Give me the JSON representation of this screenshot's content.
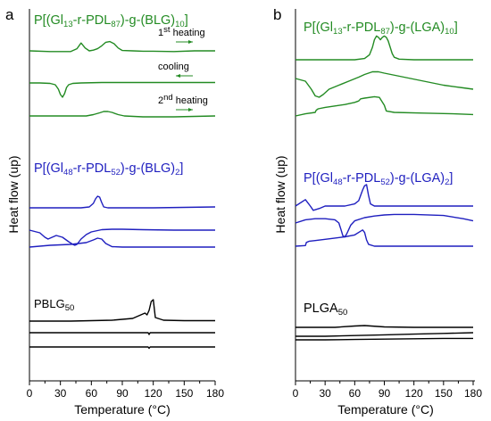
{
  "chart_data": [
    {
      "type": "line",
      "panel": "a",
      "xlabel": "Temperature (°C)",
      "ylabel": "Heat flow (up)",
      "xlim": [
        0,
        180
      ],
      "xticks": [
        "0",
        "30",
        "60",
        "90",
        "120",
        "150",
        "180"
      ],
      "groups": [
        {
          "name": "P[(Gl13-r-PDL87)-g-(BLG)10]",
          "color": "#238B23",
          "annotations": [
            "1st heating",
            "cooling",
            "2nd heating"
          ],
          "series": [
            {
              "name": "1st heating",
              "x": [
                0,
                20,
                40,
                46,
                50,
                54,
                58,
                62,
                66,
                70,
                74,
                78,
                82,
                86,
                90,
                100,
                110,
                120,
                140,
                160,
                180
              ],
              "y": [
                0,
                -0.1,
                -0.1,
                0.3,
                1.1,
                0.4,
                0,
                0.1,
                0.3,
                0.7,
                1.2,
                1.3,
                1.0,
                0.4,
                0.05,
                0,
                -0.05,
                -0.05,
                -0.1,
                0,
                0
              ]
            },
            {
              "name": "cooling",
              "x": [
                0,
                10,
                20,
                25,
                28,
                30,
                32,
                34,
                36,
                38,
                42,
                50,
                70,
                90,
                120,
                150,
                180
              ],
              "y": [
                0,
                0,
                -0.05,
                -0.2,
                -0.7,
                -1.3,
                -1.6,
                -1.2,
                -0.5,
                -0.2,
                -0.05,
                0,
                0.05,
                0.05,
                0.05,
                0.05,
                0.05
              ]
            },
            {
              "name": "2nd heating",
              "x": [
                0,
                20,
                40,
                55,
                62,
                68,
                72,
                76,
                80,
                86,
                92,
                110,
                140,
                180
              ],
              "y": [
                0,
                0,
                0,
                0,
                0.15,
                0.35,
                0.5,
                0.5,
                0.4,
                0.15,
                0,
                -0.1,
                -0.1,
                0
              ]
            }
          ]
        },
        {
          "name": "P[(Gl48-r-PDL52)-g-(BLG)2]",
          "color": "#1F1FBF",
          "series": [
            {
              "name": "1st heating",
              "x": [
                0,
                30,
                50,
                58,
                62,
                64,
                66,
                68,
                70,
                72,
                76,
                90,
                120,
                150,
                180
              ],
              "y": [
                0,
                0,
                0,
                0.1,
                0.5,
                1.0,
                1.3,
                1.2,
                0.6,
                0.1,
                0,
                0,
                0,
                0.05,
                0.1
              ]
            },
            {
              "name": "cooling",
              "x": [
                0,
                10,
                15,
                18,
                22,
                26,
                32,
                38,
                42,
                44,
                46,
                50,
                55,
                60,
                70,
                80,
                90,
                110,
                140,
                180
              ],
              "y": [
                0,
                -0.3,
                -0.8,
                -1.0,
                -0.8,
                -0.6,
                -0.8,
                -1.3,
                -1.6,
                -1.7,
                -1.6,
                -1.0,
                -0.5,
                -0.2,
                0.05,
                0.1,
                0.1,
                0.05,
                0,
                0
              ]
            },
            {
              "name": "2nd heating",
              "x": [
                0,
                20,
                40,
                55,
                62,
                66,
                70,
                74,
                80,
                90,
                110,
                140,
                180
              ],
              "y": [
                0,
                0.2,
                0.3,
                0.5,
                0.8,
                1.0,
                0.9,
                0.4,
                0.05,
                0,
                0,
                0,
                0
              ]
            }
          ]
        },
        {
          "name": "PBLG50",
          "color": "#000000",
          "series": [
            {
              "name": "1st heating",
              "x": [
                0,
                40,
                80,
                100,
                106,
                110,
                112,
                114,
                116,
                118,
                120,
                122,
                130,
                150,
                180
              ],
              "y": [
                0,
                0,
                0.1,
                0.3,
                0.6,
                0.8,
                0.9,
                0.7,
                1.2,
                2.2,
                2.4,
                0.4,
                0.1,
                0.05,
                0.05
              ]
            },
            {
              "name": "cooling",
              "x": [
                0,
                60,
                90,
                115,
                116,
                117,
                120,
                150,
                180
              ],
              "y": [
                0,
                0,
                0,
                0,
                -0.2,
                0,
                0,
                0,
                0
              ]
            },
            {
              "name": "2nd heating",
              "x": [
                0,
                60,
                115,
                116,
                117,
                120,
                150,
                180
              ],
              "y": [
                0,
                0,
                0,
                -0.15,
                0,
                0,
                0,
                0
              ]
            }
          ]
        }
      ]
    },
    {
      "type": "line",
      "panel": "b",
      "xlabel": "Temperature (°C)",
      "ylabel": "Heat flow (up)",
      "xlim": [
        0,
        180
      ],
      "xticks": [
        "0",
        "30",
        "60",
        "90",
        "120",
        "150",
        "180"
      ],
      "groups": [
        {
          "name": "P[(Gl13-r-PDL87)-g-(LGA)10]",
          "color": "#238B23",
          "series": [
            {
              "name": "1st heating",
              "x": [
                0,
                40,
                60,
                70,
                75,
                78,
                80,
                82,
                84,
                86,
                88,
                90,
                92,
                94,
                96,
                98,
                100,
                105,
                120,
                150,
                180
              ],
              "y": [
                0,
                0,
                0,
                0.1,
                0.4,
                1.0,
                1.6,
                1.9,
                1.8,
                1.6,
                1.8,
                1.9,
                1.8,
                1.5,
                1.0,
                0.5,
                0.2,
                0.05,
                0,
                0,
                0
              ]
            },
            {
              "name": "cooling",
              "x": [
                0,
                10,
                16,
                20,
                24,
                28,
                34,
                44,
                54,
                64,
                70,
                74,
                78,
                84,
                90,
                110,
                130,
                150,
                170,
                180
              ],
              "y": [
                0,
                -0.2,
                -0.8,
                -1.3,
                -1.4,
                -1.2,
                -0.8,
                -0.5,
                -0.2,
                0.1,
                0.3,
                0.4,
                0.5,
                0.5,
                0.4,
                0.1,
                -0.2,
                -0.5,
                -0.7,
                -0.8
              ]
            },
            {
              "name": "2nd heating",
              "x": [
                0,
                10,
                20,
                21,
                23,
                30,
                40,
                50,
                60,
                64,
                66,
                70,
                80,
                85,
                90,
                92,
                100,
                130,
                160,
                180
              ],
              "y": [
                0,
                0.3,
                0.5,
                0.8,
                1.0,
                1.2,
                1.4,
                1.6,
                1.9,
                2.1,
                2.4,
                2.5,
                2.7,
                2.6,
                1.5,
                0.7,
                0.5,
                0.4,
                0.3,
                0.2
              ]
            }
          ]
        },
        {
          "name": "P[(Gl48-r-PDL52)-g-(LGA)2]",
          "color": "#1F1FBF",
          "series": [
            {
              "name": "1st heating",
              "x": [
                0,
                10,
                15,
                18,
                25,
                30,
                40,
                50,
                60,
                64,
                66,
                68,
                70,
                72,
                74,
                76,
                80,
                90,
                120,
                150,
                180
              ],
              "y": [
                0,
                0.6,
                0,
                -0.4,
                -0.2,
                0,
                0,
                0,
                0.2,
                0.5,
                1.0,
                1.5,
                1.9,
                2.0,
                1.0,
                0.2,
                0,
                0,
                0,
                0,
                0
              ]
            },
            {
              "name": "cooling",
              "x": [
                0,
                10,
                20,
                30,
                40,
                44,
                46,
                48,
                50,
                52,
                54,
                56,
                60,
                70,
                80,
                90,
                100,
                120,
                150,
                170,
                180
              ],
              "y": [
                0,
                0.3,
                0.4,
                0.4,
                0.3,
                0,
                -0.6,
                -1.2,
                -1.3,
                -1.0,
                -0.6,
                -0.2,
                0.2,
                0.5,
                0.65,
                0.75,
                0.8,
                0.8,
                0.7,
                0.4,
                0.2
              ]
            },
            {
              "name": "2nd heating",
              "x": [
                0,
                10,
                11,
                14,
                20,
                30,
                40,
                50,
                60,
                66,
                68,
                70,
                72,
                74,
                80,
                90,
                120,
                150,
                180
              ],
              "y": [
                0,
                0.1,
                0.6,
                0.8,
                0.9,
                1.1,
                1.3,
                1.5,
                1.8,
                2.4,
                2.6,
                2.2,
                1.0,
                0.3,
                0,
                0,
                0,
                0,
                0
              ]
            }
          ]
        },
        {
          "name": "PLGA50",
          "color": "#000000",
          "series": [
            {
              "name": "1st heating",
              "x": [
                0,
                20,
                40,
                60,
                70,
                90,
                120,
                150,
                180
              ],
              "y": [
                0,
                0,
                0,
                0.15,
                0.2,
                0.05,
                0,
                0,
                0
              ]
            },
            {
              "name": "cooling",
              "x": [
                0,
                30,
                60,
                90,
                120,
                150,
                180
              ],
              "y": [
                0,
                0,
                0.1,
                0.2,
                0.3,
                0.4,
                0.5
              ]
            },
            {
              "name": "2nd heating",
              "x": [
                0,
                30,
                60,
                90,
                120,
                150,
                180
              ],
              "y": [
                0,
                0,
                0.05,
                0.1,
                0.15,
                0.2,
                0.2
              ]
            }
          ]
        }
      ]
    }
  ]
}
